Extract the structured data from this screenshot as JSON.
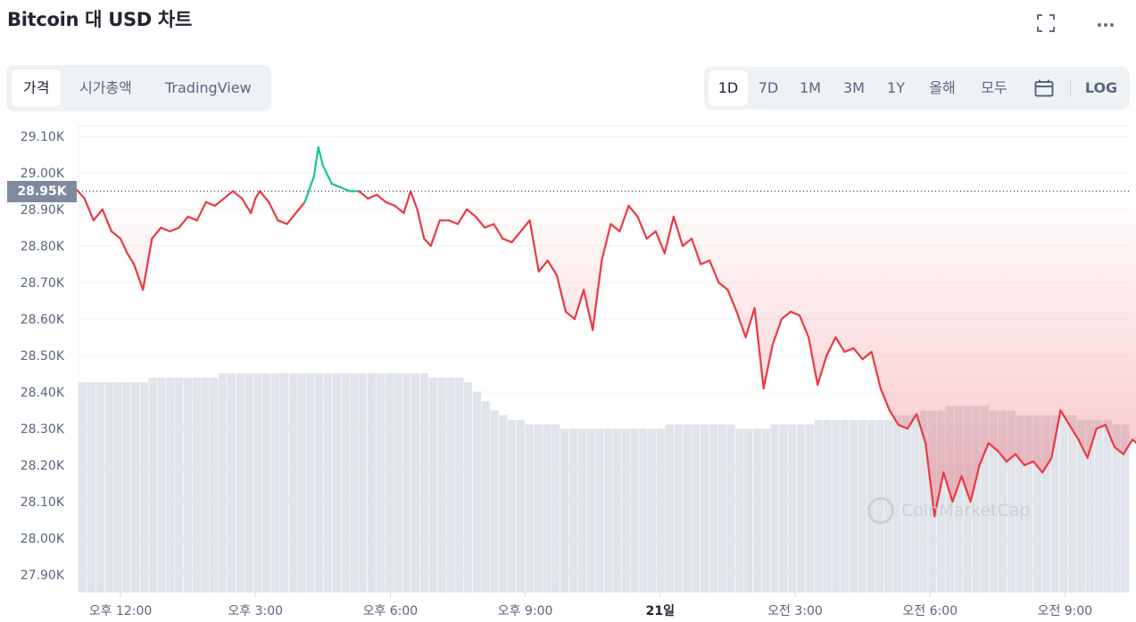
{
  "header": {
    "title": "Bitcoin 대 USD 차트",
    "fullscreen_icon": "fullscreen-icon",
    "more_icon": "more-icon"
  },
  "view_tabs": [
    {
      "label": "가격",
      "active": true
    },
    {
      "label": "시가총액",
      "active": false
    },
    {
      "label": "TradingView",
      "active": false
    }
  ],
  "range_buttons": [
    {
      "label": "1D",
      "active": true
    },
    {
      "label": "7D",
      "active": false
    },
    {
      "label": "1M",
      "active": false
    },
    {
      "label": "3M",
      "active": false
    },
    {
      "label": "1Y",
      "active": false
    },
    {
      "label": "올해",
      "active": false
    },
    {
      "label": "모두",
      "active": false
    }
  ],
  "calendar_icon": "calendar-icon",
  "log_label": "LOG",
  "current_price_label": "28.95K",
  "watermark": "CoinMarketCap",
  "colors": {
    "up": "#16c784",
    "down": "#ea3943",
    "volume": "#e1e4ea"
  },
  "chart_data": {
    "type": "line",
    "ylim": [
      27.9,
      29.1
    ],
    "y_ticks": [
      "29.10K",
      "29.00K",
      "28.90K",
      "28.80K",
      "28.70K",
      "28.60K",
      "28.50K",
      "28.40K",
      "28.30K",
      "28.20K",
      "28.10K",
      "28.00K",
      "27.90K"
    ],
    "x_ticks": [
      {
        "label": "오후 12:00",
        "hour": 12,
        "bold": false
      },
      {
        "label": "오후 3:00",
        "hour": 15,
        "bold": false
      },
      {
        "label": "오후 6:00",
        "hour": 18,
        "bold": false
      },
      {
        "label": "오후 9:00",
        "hour": 21,
        "bold": false
      },
      {
        "label": "21일",
        "hour": 24,
        "bold": true
      },
      {
        "label": "오전 3:00",
        "hour": 27,
        "bold": false
      },
      {
        "label": "오전 6:00",
        "hour": 30,
        "bold": false
      },
      {
        "label": "오전 9:00",
        "hour": 33,
        "bold": false
      }
    ],
    "reference_price": 28.95,
    "series": [
      {
        "points": [
          [
            10.98,
            28.96
          ],
          [
            11.2,
            28.93
          ],
          [
            11.4,
            28.87
          ],
          [
            11.6,
            28.9
          ],
          [
            11.8,
            28.84
          ],
          [
            12.0,
            28.82
          ],
          [
            12.15,
            28.78
          ],
          [
            12.3,
            28.75
          ],
          [
            12.5,
            28.68
          ],
          [
            12.7,
            28.82
          ],
          [
            12.9,
            28.85
          ],
          [
            13.1,
            28.84
          ],
          [
            13.3,
            28.85
          ],
          [
            13.5,
            28.88
          ],
          [
            13.7,
            28.87
          ],
          [
            13.9,
            28.92
          ],
          [
            14.1,
            28.91
          ],
          [
            14.3,
            28.93
          ],
          [
            14.5,
            28.95
          ],
          [
            14.7,
            28.93
          ],
          [
            14.9,
            28.89
          ],
          [
            15.0,
            28.93
          ],
          [
            15.1,
            28.95
          ],
          [
            15.3,
            28.92
          ],
          [
            15.5,
            28.87
          ],
          [
            15.7,
            28.86
          ],
          [
            15.9,
            28.89
          ],
          [
            16.1,
            28.92
          ],
          [
            16.3,
            28.99
          ],
          [
            16.4,
            29.07
          ],
          [
            16.5,
            29.02
          ],
          [
            16.7,
            28.97
          ],
          [
            16.9,
            28.96
          ],
          [
            17.1,
            28.95
          ],
          [
            17.3,
            28.95
          ],
          [
            17.5,
            28.93
          ],
          [
            17.7,
            28.94
          ],
          [
            17.9,
            28.92
          ],
          [
            18.1,
            28.91
          ],
          [
            18.3,
            28.89
          ],
          [
            18.45,
            28.95
          ],
          [
            18.6,
            28.9
          ],
          [
            18.75,
            28.82
          ],
          [
            18.9,
            28.8
          ],
          [
            19.1,
            28.87
          ],
          [
            19.3,
            28.87
          ],
          [
            19.5,
            28.86
          ],
          [
            19.7,
            28.9
          ],
          [
            19.9,
            28.88
          ],
          [
            20.1,
            28.85
          ],
          [
            20.3,
            28.86
          ],
          [
            20.5,
            28.82
          ],
          [
            20.7,
            28.81
          ],
          [
            20.9,
            28.84
          ],
          [
            21.1,
            28.87
          ],
          [
            21.3,
            28.73
          ],
          [
            21.5,
            28.76
          ],
          [
            21.7,
            28.72
          ],
          [
            21.9,
            28.62
          ],
          [
            22.1,
            28.6
          ],
          [
            22.3,
            28.68
          ],
          [
            22.5,
            28.57
          ],
          [
            22.7,
            28.76
          ],
          [
            22.9,
            28.86
          ],
          [
            23.1,
            28.84
          ],
          [
            23.3,
            28.91
          ],
          [
            23.5,
            28.88
          ],
          [
            23.7,
            28.82
          ],
          [
            23.9,
            28.84
          ],
          [
            24.1,
            28.78
          ],
          [
            24.3,
            28.88
          ],
          [
            24.5,
            28.8
          ],
          [
            24.7,
            28.82
          ],
          [
            24.9,
            28.75
          ],
          [
            25.1,
            28.76
          ],
          [
            25.3,
            28.7
          ],
          [
            25.5,
            28.68
          ],
          [
            25.7,
            28.62
          ],
          [
            25.9,
            28.55
          ],
          [
            26.1,
            28.63
          ],
          [
            26.3,
            28.41
          ],
          [
            26.5,
            28.53
          ],
          [
            26.7,
            28.6
          ],
          [
            26.9,
            28.62
          ],
          [
            27.1,
            28.61
          ],
          [
            27.3,
            28.55
          ],
          [
            27.5,
            28.42
          ],
          [
            27.7,
            28.5
          ],
          [
            27.9,
            28.55
          ],
          [
            28.1,
            28.51
          ],
          [
            28.3,
            28.52
          ],
          [
            28.5,
            28.49
          ],
          [
            28.7,
            28.51
          ],
          [
            28.9,
            28.41
          ],
          [
            29.1,
            28.35
          ],
          [
            29.3,
            28.31
          ],
          [
            29.5,
            28.3
          ],
          [
            29.7,
            28.34
          ],
          [
            29.9,
            28.26
          ],
          [
            30.1,
            28.06
          ],
          [
            30.3,
            28.18
          ],
          [
            30.5,
            28.1
          ],
          [
            30.7,
            28.17
          ],
          [
            30.9,
            28.1
          ],
          [
            31.1,
            28.2
          ],
          [
            31.3,
            28.26
          ],
          [
            31.5,
            28.24
          ],
          [
            31.7,
            28.21
          ],
          [
            31.9,
            28.23
          ],
          [
            32.1,
            28.2
          ],
          [
            32.3,
            28.21
          ],
          [
            32.5,
            28.18
          ],
          [
            32.7,
            28.22
          ],
          [
            32.9,
            28.35
          ],
          [
            33.1,
            28.31
          ],
          [
            33.3,
            28.27
          ],
          [
            33.5,
            28.22
          ],
          [
            33.7,
            28.3
          ],
          [
            33.9,
            28.31
          ],
          [
            34.1,
            28.25
          ],
          [
            34.3,
            28.23
          ],
          [
            34.5,
            28.27
          ],
          [
            34.7,
            28.25
          ],
          [
            34.9,
            28.28
          ],
          [
            35.1,
            28.29
          ],
          [
            35.3,
            28.26
          ],
          [
            35.5,
            28.14
          ],
          [
            35.7,
            28.27
          ],
          [
            35.9,
            28.33
          ],
          [
            36.1,
            28.25
          ],
          [
            36.3,
            28.24
          ],
          [
            36.5,
            28.26
          ],
          [
            36.7,
            28.23
          ],
          [
            36.95,
            28.22
          ]
        ]
      }
    ],
    "volume": {
      "values": [
        0.45,
        0.45,
        0.45,
        0.45,
        0.45,
        0.45,
        0.45,
        0.45,
        0.46,
        0.46,
        0.46,
        0.46,
        0.46,
        0.46,
        0.46,
        0.46,
        0.47,
        0.47,
        0.47,
        0.47,
        0.47,
        0.47,
        0.47,
        0.47,
        0.47,
        0.47,
        0.47,
        0.47,
        0.47,
        0.47,
        0.47,
        0.47,
        0.47,
        0.47,
        0.47,
        0.47,
        0.47,
        0.47,
        0.47,
        0.47,
        0.46,
        0.46,
        0.46,
        0.46,
        0.45,
        0.43,
        0.41,
        0.39,
        0.38,
        0.37,
        0.37,
        0.36,
        0.36,
        0.36,
        0.36,
        0.35,
        0.35,
        0.35,
        0.35,
        0.35,
        0.35,
        0.35,
        0.35,
        0.35,
        0.35,
        0.35,
        0.35,
        0.36,
        0.36,
        0.36,
        0.36,
        0.36,
        0.36,
        0.36,
        0.36,
        0.35,
        0.35,
        0.35,
        0.35,
        0.36,
        0.36,
        0.36,
        0.36,
        0.36,
        0.37,
        0.37,
        0.37,
        0.37,
        0.37,
        0.37,
        0.37,
        0.37,
        0.37,
        0.38,
        0.38,
        0.38,
        0.39,
        0.39,
        0.39,
        0.4,
        0.4,
        0.4,
        0.4,
        0.4,
        0.39,
        0.39,
        0.39,
        0.38,
        0.38,
        0.38,
        0.38,
        0.38,
        0.38,
        0.38,
        0.37,
        0.37,
        0.37,
        0.37,
        0.36,
        0.36
      ]
    }
  }
}
